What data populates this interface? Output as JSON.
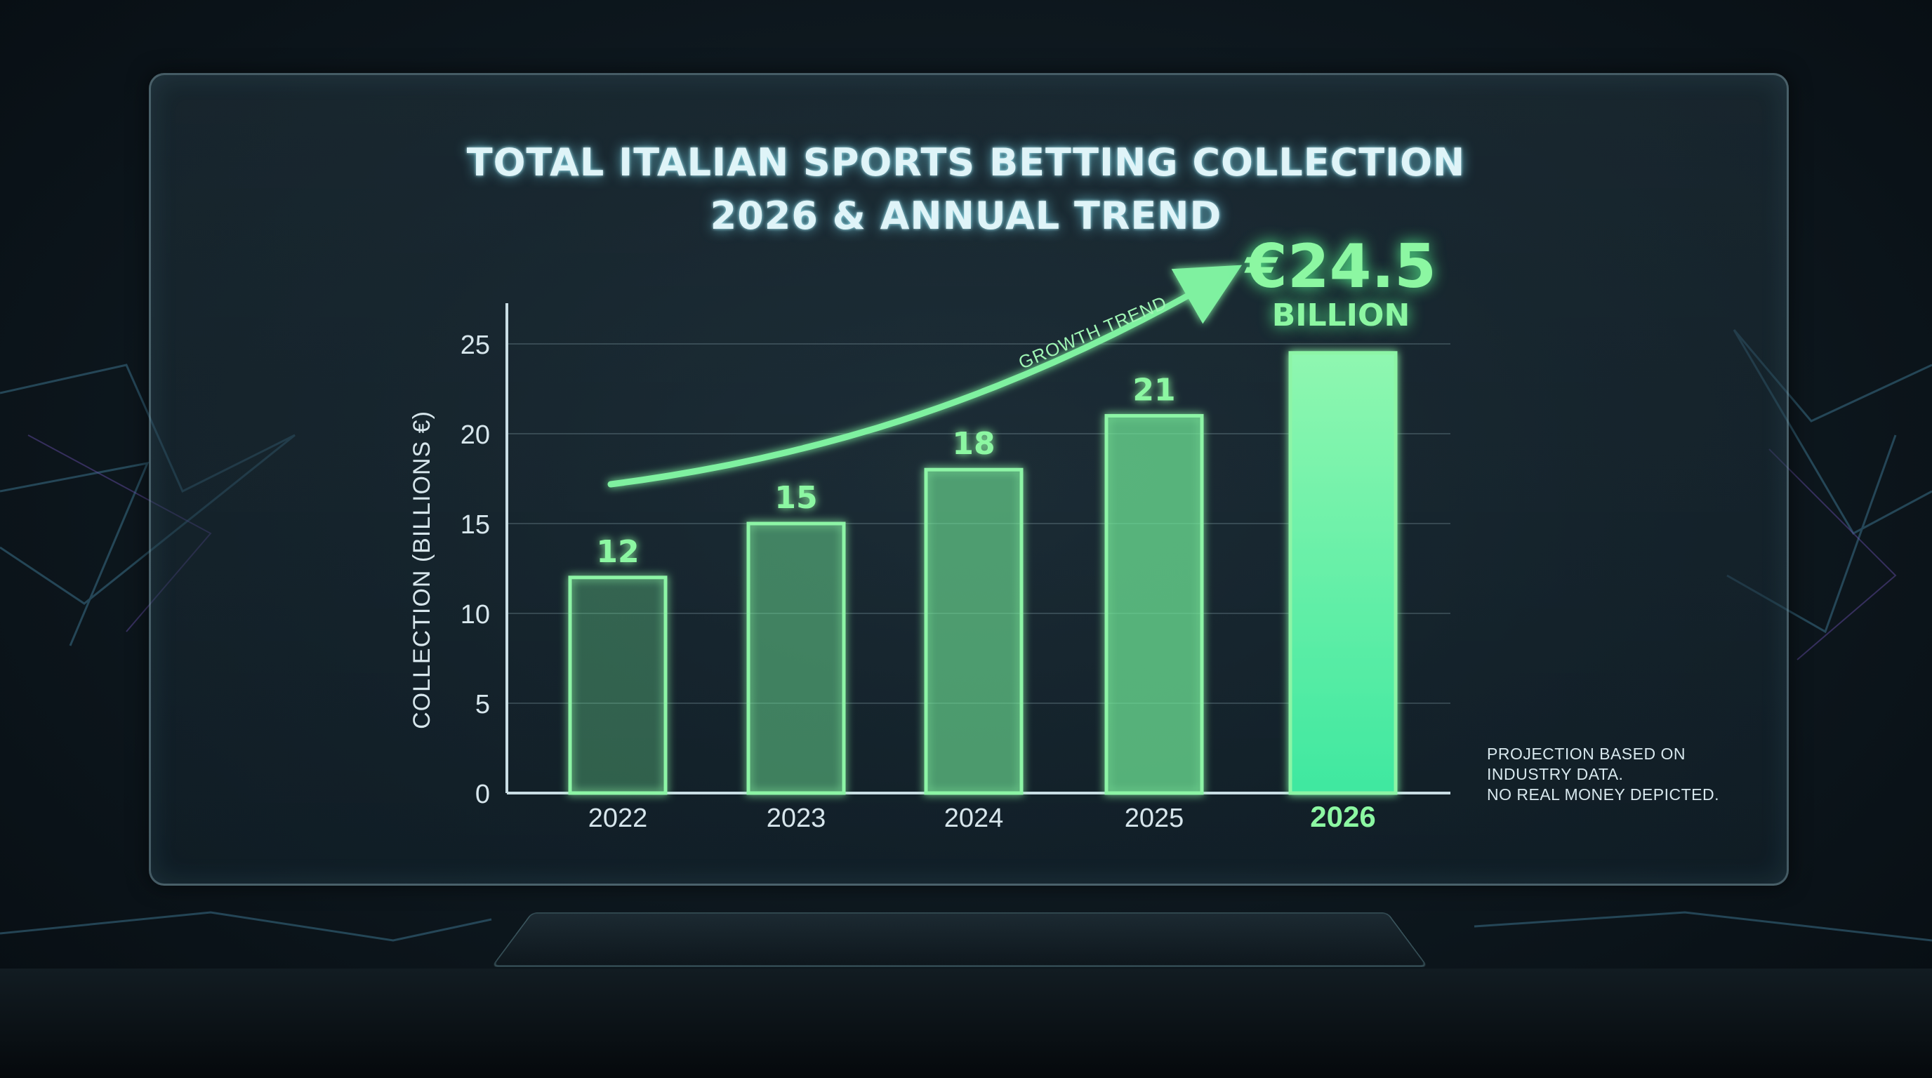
{
  "title_lines": [
    "TOTAL ITALIAN SPORTS BETTING COLLECTION",
    "2026 & ANNUAL TREND"
  ],
  "highlight": {
    "value": "€24.5",
    "unit": "BILLION"
  },
  "trend_label": "GROWTH TREND",
  "footnote": [
    "PROJECTION BASED ON",
    "INDUSTRY DATA.",
    "NO REAL MONEY DEPICTED."
  ],
  "colors": {
    "accent": "#8cf7a2",
    "bar_edge": "#8df5a6",
    "bar_fill_last": "#5ef0a6",
    "title": "#dff4f8"
  },
  "chart_data": {
    "type": "bar",
    "categories": [
      "2022",
      "2023",
      "2024",
      "2025",
      "2026"
    ],
    "values": [
      12,
      15,
      18,
      21,
      24.5
    ],
    "data_labels": [
      "12",
      "15",
      "18",
      "21",
      ""
    ],
    "ylabel": "COLLECTION (BILLIONS €)",
    "xlabel": "",
    "ylim": [
      0,
      25
    ],
    "yticks": [
      0,
      5,
      10,
      15,
      20,
      25
    ],
    "grid": true,
    "highlighted_category": "2026"
  }
}
